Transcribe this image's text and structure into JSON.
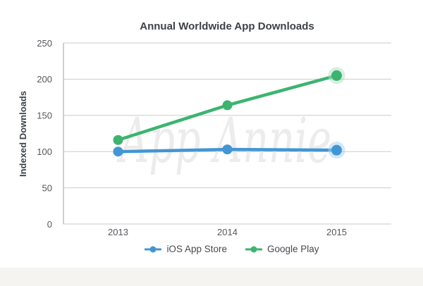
{
  "watermark": "App Annie",
  "chart_data": {
    "type": "line",
    "title": "Annual Worldwide App Downloads",
    "ylabel": "Indexed Downloads",
    "xlabel": "",
    "categories": [
      "2013",
      "2014",
      "2015"
    ],
    "series": [
      {
        "name": "iOS App Store",
        "values": [
          100,
          103,
          102
        ],
        "color": "#4296d3",
        "halo_color": "#a9d2ef",
        "last_point_halo": true
      },
      {
        "name": "Google Play",
        "values": [
          116,
          164,
          205
        ],
        "color": "#3cb46f",
        "halo_color": "#aee0c5",
        "last_point_halo": true
      }
    ],
    "ylim": [
      0,
      250
    ],
    "yticks": [
      0,
      50,
      100,
      150,
      200,
      250
    ],
    "grid": true,
    "legend_position": "bottom"
  },
  "colors": {
    "background": "#ffffff",
    "grid": "#cbcbcb",
    "axis": "#b0b0b0",
    "tick_text": "#55585d",
    "title_text": "#3d4247",
    "legend_text": "#46494e",
    "watermark": "#ececec",
    "bottom_band": "#f5f4f1"
  }
}
